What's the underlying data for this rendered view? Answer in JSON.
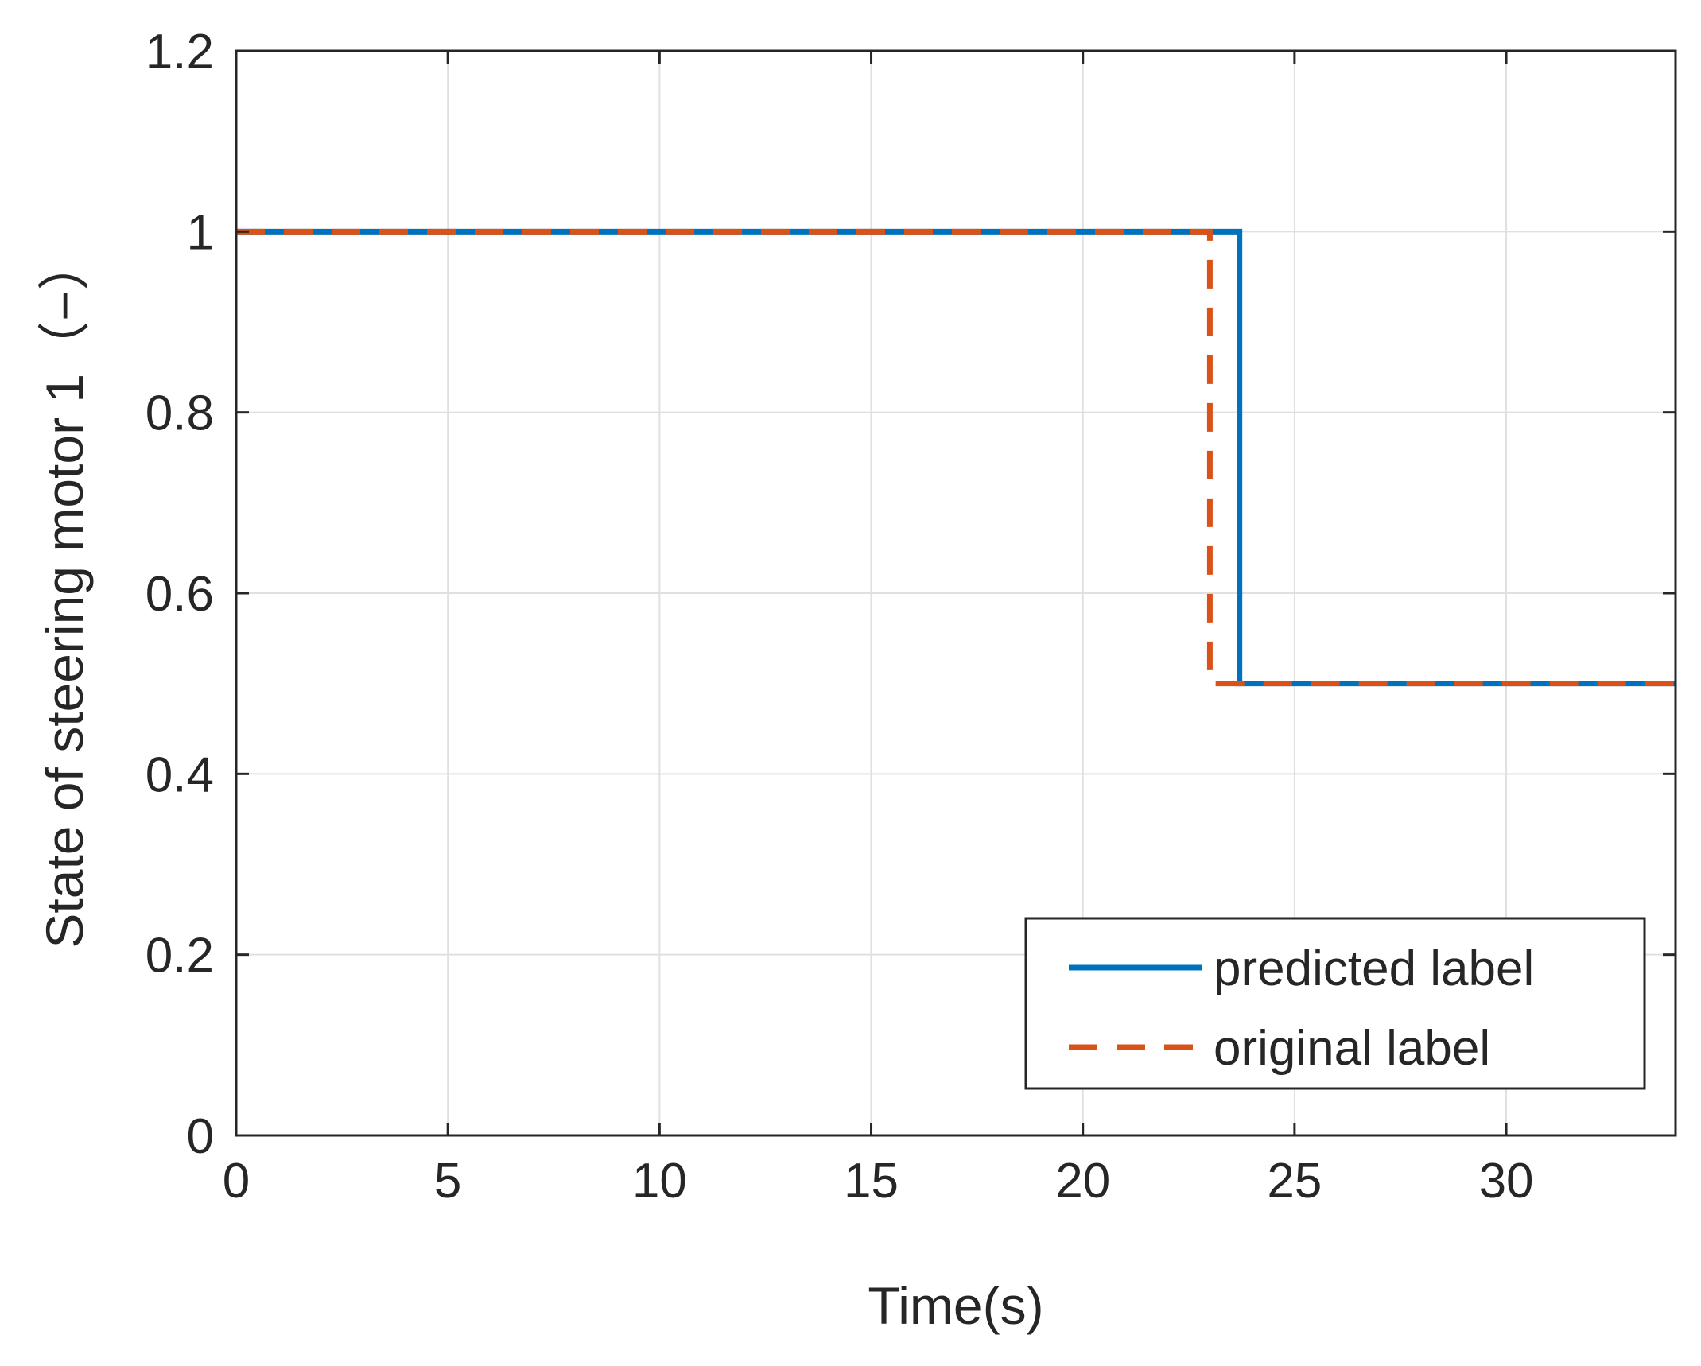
{
  "chart_data": {
    "type": "line",
    "xlabel": "Time(s)",
    "ylabel": "State of steering motor 1（−）",
    "xlim": [
      0,
      34
    ],
    "ylim": [
      0,
      1.2
    ],
    "xticks": [
      "0",
      "5",
      "10",
      "15",
      "20",
      "25",
      "30"
    ],
    "yticks": [
      "0",
      "0.2",
      "0.4",
      "0.6",
      "0.8",
      "1",
      "1.2"
    ],
    "grid": true,
    "legend_position": "bottom-right",
    "series": [
      {
        "name": "predicted label",
        "style": "solid",
        "color": "#0072BD",
        "x": [
          0,
          23.7,
          23.7,
          34
        ],
        "y": [
          1,
          1,
          0.5,
          0.5
        ]
      },
      {
        "name": "original label",
        "style": "dashed",
        "color": "#D95319",
        "x": [
          0,
          23.0,
          23.0,
          34
        ],
        "y": [
          1,
          1,
          0.5,
          0.5
        ]
      }
    ]
  }
}
